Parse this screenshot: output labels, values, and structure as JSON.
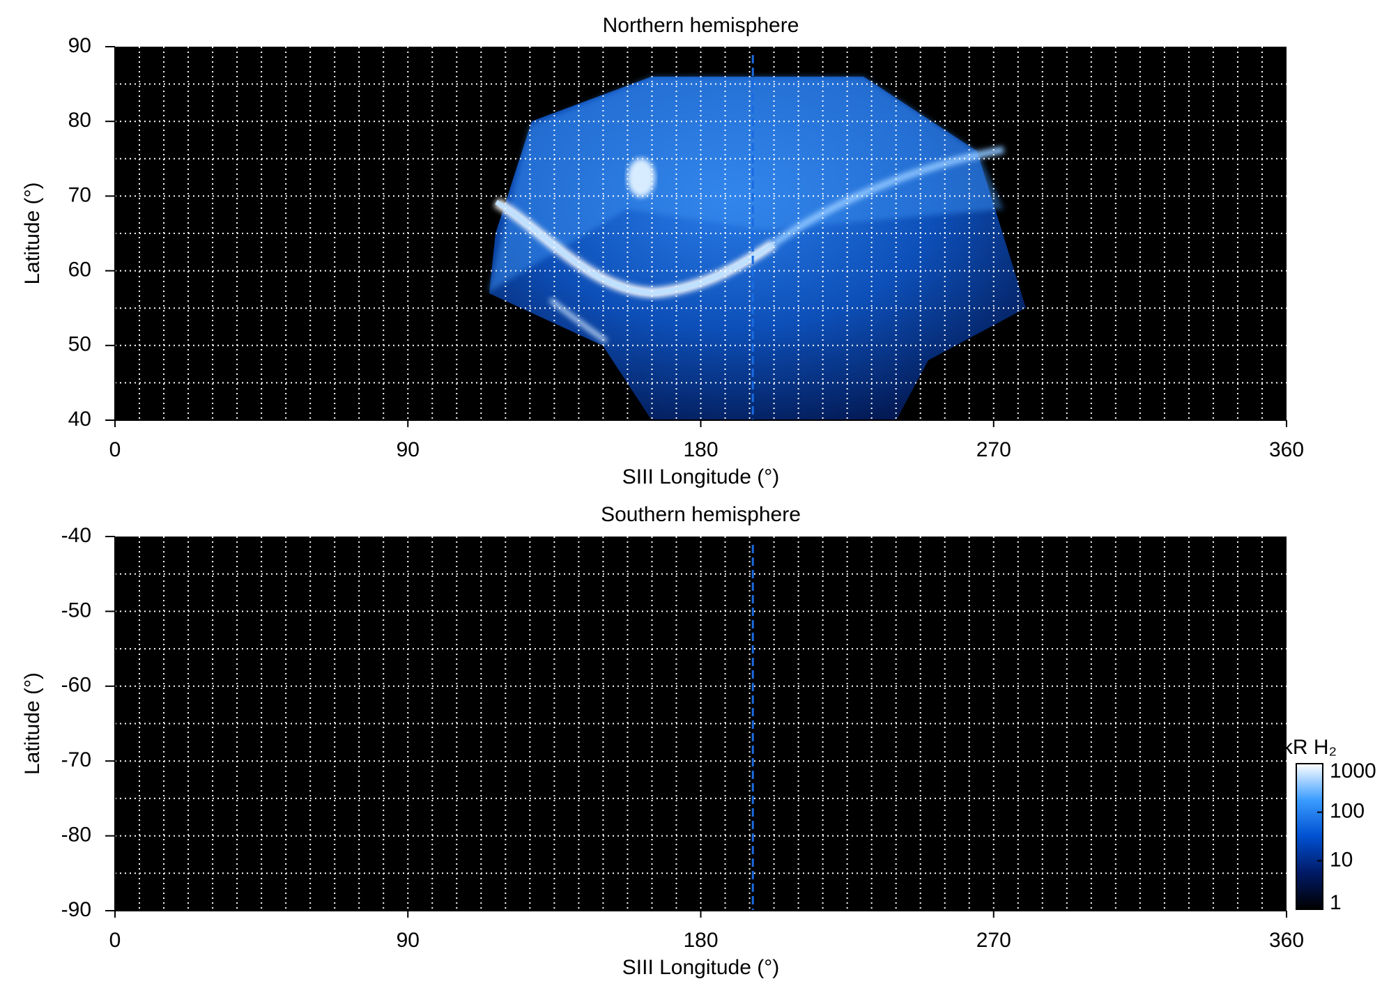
{
  "chart_data": [
    {
      "type": "heatmap",
      "title": "Northern hemisphere",
      "x_label": "SIII Longitude (°)",
      "y_label": "Latitude (°)",
      "xlim": [
        0,
        360
      ],
      "xticks": [
        0,
        90,
        180,
        270,
        360
      ],
      "ylim": [
        40,
        90
      ],
      "yticks": [
        40,
        50,
        60,
        70,
        80,
        90
      ],
      "grid": true,
      "xgrid": [
        7.5,
        15,
        22.5,
        30,
        37.5,
        45,
        52.5,
        60,
        67.5,
        75,
        82.5,
        90,
        97.5,
        105,
        112.5,
        120,
        127.5,
        135,
        142.5,
        150,
        157.5,
        165,
        172.5,
        180,
        187.5,
        195,
        202.5,
        210,
        217.5,
        225,
        232.5,
        240,
        247.5,
        255,
        262.5,
        270,
        277.5,
        285,
        292.5,
        300,
        307.5,
        315,
        322.5,
        330,
        337.5,
        345,
        352.5
      ],
      "ygrid": [
        45,
        50,
        55,
        60,
        65,
        70,
        75,
        80,
        85
      ],
      "marker_longitude": 196
    },
    {
      "type": "heatmap",
      "title": "Southern hemisphere",
      "x_label": "SIII Longitude (°)",
      "y_label": "Latitude (°)",
      "xlim": [
        0,
        360
      ],
      "xticks": [
        0,
        90,
        180,
        270,
        360
      ],
      "ylim": [
        -90,
        -40
      ],
      "yticks": [
        -90,
        -80,
        -70,
        -60,
        -50,
        -40
      ],
      "grid": true,
      "xgrid": [
        7.5,
        15,
        22.5,
        30,
        37.5,
        45,
        52.5,
        60,
        67.5,
        75,
        82.5,
        90,
        97.5,
        105,
        112.5,
        120,
        127.5,
        135,
        142.5,
        150,
        157.5,
        165,
        172.5,
        180,
        187.5,
        195,
        202.5,
        210,
        217.5,
        225,
        232.5,
        240,
        247.5,
        255,
        262.5,
        270,
        277.5,
        285,
        292.5,
        300,
        307.5,
        315,
        322.5,
        330,
        337.5,
        345,
        352.5
      ],
      "ygrid": [
        -85,
        -80,
        -75,
        -70,
        -65,
        -60,
        -55,
        -50,
        -45
      ],
      "marker_longitude": 196,
      "colorbar": {
        "label": "kR H₂",
        "lim": [
          1,
          1000
        ],
        "ticks": [
          1,
          10,
          100,
          1000
        ],
        "log": true,
        "colors": [
          "#000000",
          "#001a66",
          "#0050d0",
          "#3a9cff",
          "#ffffff"
        ]
      }
    }
  ]
}
